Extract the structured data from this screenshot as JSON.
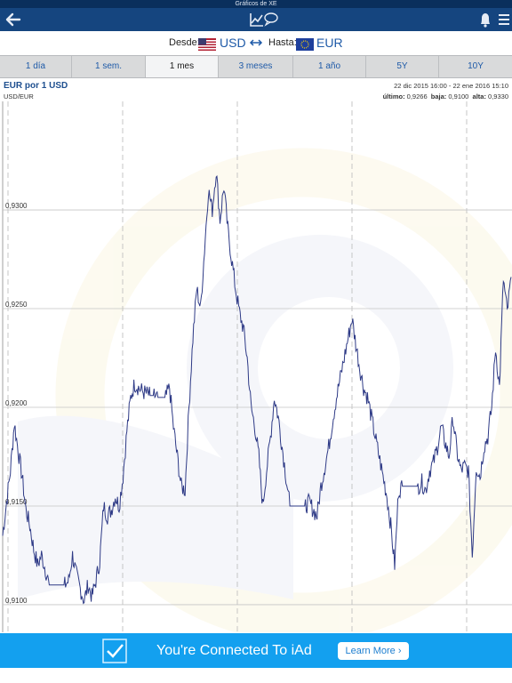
{
  "status_bar": {
    "title": "Gráficos de XE"
  },
  "nav": {
    "back_icon": "back-arrow-icon",
    "center_icon": "chart-chat-icon",
    "alerts_icon": "bell-icon",
    "menu_icon": "hamburger-menu-icon"
  },
  "currency": {
    "from_label": "Desde:",
    "from_code": "USD",
    "swap_icon": "swap-arrows-icon",
    "to_label": "Hasta:",
    "to_code": "EUR"
  },
  "tabs": [
    {
      "label": "1 día"
    },
    {
      "label": "1 sem."
    },
    {
      "label": "1 mes",
      "active": true
    },
    {
      "label": "3 meses"
    },
    {
      "label": "1 año"
    },
    {
      "label": "5Y"
    },
    {
      "label": "10Y"
    }
  ],
  "chart_header": {
    "title": "EUR por 1 USD",
    "pair": "USD/EUR",
    "range": "22 dic 2015 16:00 - 22 ene 2016 15:10",
    "last_label": "último:",
    "last_value": "0,9266",
    "low_label": "baja:",
    "low_value": "0,9100",
    "high_label": "alta:",
    "high_value": "0,9330"
  },
  "chart_data": {
    "type": "line",
    "title": "EUR por 1 USD",
    "xlabel": "",
    "ylabel": "",
    "ytick_labels": [
      "0,9100",
      "0,9150",
      "0,9200",
      "0,9250",
      "0,9300"
    ],
    "yticks": [
      0.91,
      0.915,
      0.92,
      0.925,
      0.93
    ],
    "ylim": [
      0.9086,
      0.9355
    ],
    "grid": true,
    "x_range": [
      "22 dic 2015 16:00",
      "22 ene 2016 15:10"
    ],
    "series": [
      {
        "values": [
          0.9135,
          0.9152,
          0.9168,
          0.9192,
          0.9178,
          0.9165,
          0.9148,
          0.914,
          0.9128,
          0.912,
          0.9125,
          0.9118,
          0.911,
          0.911,
          0.911,
          0.911,
          0.911,
          0.9112,
          0.9125,
          0.9115,
          0.9108,
          0.9102,
          0.911,
          0.9104,
          0.9112,
          0.9122,
          0.915,
          0.9145,
          0.9148,
          0.9155,
          0.915,
          0.9165,
          0.9188,
          0.9205,
          0.9212,
          0.921,
          0.9208,
          0.9207,
          0.9206,
          0.9206,
          0.9205,
          0.9205,
          0.9205,
          0.921,
          0.919,
          0.9175,
          0.916,
          0.9158,
          0.92,
          0.9235,
          0.926,
          0.925,
          0.928,
          0.931,
          0.93,
          0.932,
          0.9295,
          0.9312,
          0.929,
          0.9275,
          0.926,
          0.9248,
          0.924,
          0.9225,
          0.92,
          0.919,
          0.9175,
          0.915,
          0.9168,
          0.9185,
          0.9205,
          0.9195,
          0.918,
          0.9165,
          0.915,
          0.915,
          0.915,
          0.915,
          0.915,
          0.9152,
          0.9148,
          0.9145,
          0.916,
          0.917,
          0.918,
          0.9193,
          0.9205,
          0.9215,
          0.9225,
          0.9235,
          0.9245,
          0.9232,
          0.922,
          0.921,
          0.9205,
          0.9195,
          0.9185,
          0.9175,
          0.9165,
          0.9155,
          0.914,
          0.912,
          0.9158,
          0.916,
          0.916,
          0.916,
          0.916,
          0.916,
          0.9162,
          0.9158,
          0.9168,
          0.9172,
          0.918,
          0.919,
          0.9182,
          0.9175,
          0.9195,
          0.9178,
          0.9168,
          0.917,
          0.9168,
          0.9125,
          0.917,
          0.9165,
          0.918,
          0.9185,
          0.92,
          0.923,
          0.921,
          0.9265,
          0.9248,
          0.9266
        ]
      }
    ]
  },
  "ad": {
    "checkmark_icon": "checkmark-icon",
    "text": "You're Connected To iAd",
    "button_label": "Learn More"
  }
}
